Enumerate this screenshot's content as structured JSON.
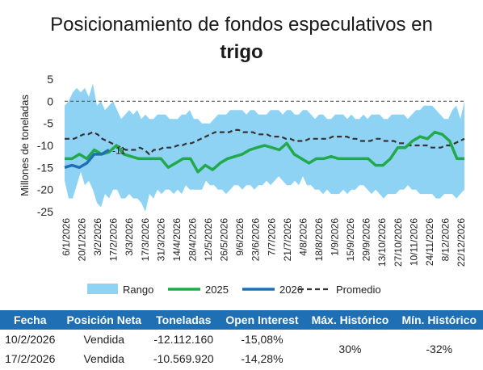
{
  "chart_data": {
    "type": "area",
    "title": "Posicionamiento de fondos especulativos en",
    "title_bold": "trigo",
    "ylabel": "Millones de toneladas",
    "ylim": [
      -25,
      5
    ],
    "yticks": [
      5,
      0,
      -5,
      -10,
      -15,
      -20,
      -25
    ],
    "x_tick_labels": [
      "6/1/2026",
      "20/1/2026",
      "3/2/2026",
      "17/2/2026",
      "3/3/2026",
      "17/3/2026",
      "31/3/2026",
      "14/4/2026",
      "28/4/2026",
      "12/5/2026",
      "26/5/2026",
      "9/6/2026",
      "23/6/2026",
      "7/7/2026",
      "21/7/2026",
      "4/8/2026",
      "18/8/2026",
      "1/9/2026",
      "15/9/2026",
      "29/9/2026",
      "13/10/2026",
      "27/10/2026",
      "10/11/2026",
      "24/11/2026",
      "8/12/2026",
      "22/12/2026"
    ],
    "grid": false,
    "legend_position": "bottom",
    "annotation": {
      "text": "-11",
      "x_index": 6,
      "y": -11
    },
    "series": [
      {
        "name": "Rango",
        "color": "#8fd3f4",
        "upper": [
          -1,
          0,
          2,
          3,
          2,
          3,
          1,
          4,
          -1,
          0,
          -2,
          -1,
          0,
          -2,
          -4,
          -3,
          -2,
          -3,
          -2,
          -4,
          -3,
          -4,
          -4,
          -3,
          -3,
          -3,
          -4,
          -4,
          -4,
          -3,
          -3,
          -2,
          -4,
          -4,
          -5,
          -5,
          -5,
          -4,
          -3,
          -3,
          -3,
          -2,
          -2,
          -2,
          -2,
          -3,
          -2,
          -2,
          -3,
          -3,
          -3,
          -2,
          -2,
          -2,
          -3,
          -2,
          -2,
          -3,
          -3,
          -2,
          -2,
          -3,
          -4,
          -3,
          -3,
          -4,
          -4,
          -3,
          -3,
          -3,
          -4,
          -3,
          -4,
          -4,
          -3,
          -4,
          -3,
          -3,
          -3,
          -4,
          -4,
          -3,
          -3,
          -3,
          -3,
          -4,
          -3,
          -2,
          -2,
          -1,
          -1,
          -1,
          -2,
          -3,
          -4,
          -4,
          -2,
          -1,
          -4,
          0
        ],
        "lower": [
          -18,
          -22,
          -22,
          -19,
          -16,
          -19,
          -18,
          -20,
          -23,
          -24,
          -21,
          -22,
          -20,
          -20,
          -22,
          -22,
          -21,
          -22,
          -22,
          -23,
          -25,
          -21,
          -22,
          -20,
          -21,
          -20,
          -20,
          -21,
          -20,
          -21,
          -19,
          -20,
          -20,
          -20,
          -20,
          -18,
          -19,
          -19,
          -20,
          -20,
          -21,
          -20,
          -19,
          -19,
          -20,
          -19,
          -19,
          -20,
          -19,
          -19,
          -18,
          -19,
          -18,
          -17,
          -18,
          -19,
          -19,
          -18,
          -19,
          -17,
          -19,
          -19,
          -20,
          -20,
          -21,
          -20,
          -21,
          -21,
          -21,
          -20,
          -21,
          -20,
          -20,
          -19,
          -19,
          -20,
          -21,
          -20,
          -21,
          -22,
          -21,
          -21,
          -21,
          -20,
          -20,
          -19,
          -20,
          -20,
          -21,
          -21,
          -21,
          -21,
          -22,
          -22,
          -21,
          -21,
          -21,
          -22,
          -21,
          -20
        ]
      },
      {
        "name": "2025",
        "color": "#22a94b",
        "values": [
          -13,
          -13,
          -12,
          -13,
          -11,
          -12,
          -11.5,
          -10,
          -12,
          -12.5,
          -13,
          -13,
          -13,
          -13,
          -15,
          -14,
          -13,
          -13,
          -16,
          -14.5,
          -15.5,
          -14,
          -13,
          -12.5,
          -12,
          -11,
          -10.5,
          -10,
          -10.5,
          -11,
          -9.5,
          -12,
          -13,
          -14,
          -13,
          -13,
          -12.5,
          -13,
          -13,
          -13,
          -13,
          -13,
          -14.5,
          -14.5,
          -13,
          -10.5,
          -10.5,
          -9,
          -8,
          -8.5,
          -7,
          -7.5,
          -9,
          -13,
          -13
        ]
      },
      {
        "name": "2026",
        "color": "#1f6fb5",
        "values": [
          -15,
          -14.5,
          -15,
          -14,
          -12,
          -12,
          -11
        ]
      },
      {
        "name": "Promedio",
        "color": "#333333",
        "dash": true,
        "values": [
          -8.5,
          -8.5,
          -8.5,
          -8,
          -7.5,
          -7.5,
          -7,
          -7.5,
          -8.5,
          -9,
          -9.5,
          -10,
          -10.5,
          -11,
          -11,
          -11,
          -10.5,
          -11,
          -12,
          -11,
          -11,
          -10.5,
          -10.5,
          -10.5,
          -10,
          -10,
          -9.5,
          -9.5,
          -9,
          -8.5,
          -8,
          -7.5,
          -7,
          -7,
          -7,
          -7,
          -6.5,
          -6.5,
          -7,
          -7,
          -7,
          -7.5,
          -7.5,
          -7.5,
          -8,
          -8,
          -8,
          -8.5,
          -8.5,
          -9,
          -9,
          -9,
          -8.5,
          -8.5,
          -8.5,
          -8.5,
          -8.5,
          -8,
          -8,
          -8,
          -8,
          -8.5,
          -8.5,
          -9,
          -9,
          -9,
          -8.5,
          -8.5,
          -9,
          -9,
          -9,
          -9.5,
          -9.5,
          -10,
          -10,
          -10,
          -10,
          -10,
          -10.5,
          -10.5,
          -10.5,
          -10,
          -10,
          -9.5,
          -9,
          -8.5
        ]
      }
    ]
  },
  "table": {
    "headers": [
      "Fecha",
      "Posición Neta",
      "Toneladas",
      "Open Interest",
      "Máx. Histórico",
      "Mín. Histórico"
    ],
    "rows": [
      [
        "10/2/2026",
        "Vendida",
        "-12.112.160",
        "-15,08%"
      ],
      [
        "17/2/2026",
        "Vendida",
        "-10.569.920",
        "-14,28%"
      ]
    ],
    "max_historico": "30%",
    "min_historico": "-32%"
  },
  "colors": {
    "header_bg": "#1f6fb5",
    "range": "#8fd3f4",
    "line_2025": "#22a94b",
    "line_2026": "#1f6fb5",
    "avg": "#333333"
  }
}
